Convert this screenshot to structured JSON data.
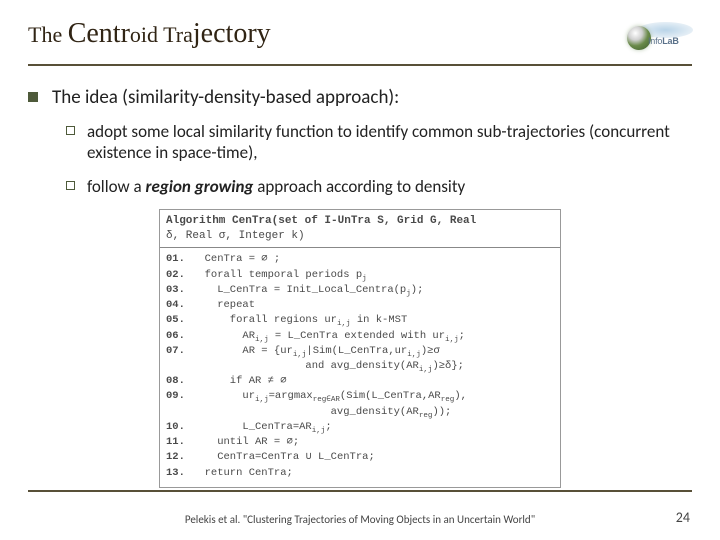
{
  "title": {
    "t1": "The ",
    "t2": "Centr",
    "t3": "oid ",
    "t4": "Tra",
    "t5": "jectory"
  },
  "logo": {
    "text_plain": "Info",
    "text_bold": "LaB"
  },
  "lvl1_text": "The idea (similarity-density-based approach):",
  "lvl2": [
    "adopt some local similarity function to identify common sub-trajectories (concurrent existence in space-time),",
    {
      "pre": "follow a ",
      "emph": "region growing",
      "post": " approach according to density"
    }
  ],
  "algorithm": {
    "sig_line1": "Algorithm CenTra(set of I-UnTra S, Grid G, Real",
    "sig_line2": "δ, Real σ, Integer k)",
    "lines": [
      {
        "n": "01.",
        "ind": 1,
        "txt": "CenTra = ∅ ;"
      },
      {
        "n": "02.",
        "ind": 1,
        "txt": "forall temporal periods p_j"
      },
      {
        "n": "03.",
        "ind": 2,
        "txt": "L_CenTra = Init_Local_Centra(p_j);"
      },
      {
        "n": "04.",
        "ind": 2,
        "txt": "repeat"
      },
      {
        "n": "05.",
        "ind": 3,
        "txt": "forall regions ur_i,j in k-MST"
      },
      {
        "n": "06.",
        "ind": 4,
        "txt": "AR_i,j = L_CenTra extended with ur_i,j;"
      },
      {
        "n": "07.",
        "ind": 4,
        "txt": "AR = {ur_i,j|Sim(L_CenTra,ur_i,j)≥σ"
      },
      {
        "n": "",
        "ind": 9,
        "txt": "and avg_density(AR_i,j)≥δ};"
      },
      {
        "n": "08.",
        "ind": 3,
        "txt": "if AR ≠ ∅"
      },
      {
        "n": "09.",
        "ind": 4,
        "txt": "ur_i,j=argmax_reg∈AR(Sim(L_CenTra,AR_reg),"
      },
      {
        "n": "",
        "ind": 11,
        "txt": "avg_density(AR_reg));"
      },
      {
        "n": "10.",
        "ind": 4,
        "txt": "L_CenTra=AR_i,j;"
      },
      {
        "n": "11.",
        "ind": 2,
        "txt": "until AR = ∅;"
      },
      {
        "n": "12.",
        "ind": 2,
        "txt": "CenTra=CenTra ∪ L_CenTra;"
      },
      {
        "n": "13.",
        "ind": 1,
        "txt": "return CenTra;"
      }
    ]
  },
  "citation": "Pelekis et al. \"Clustering Trajectories of Moving Objects in an Uncertain World\"",
  "page": "24"
}
